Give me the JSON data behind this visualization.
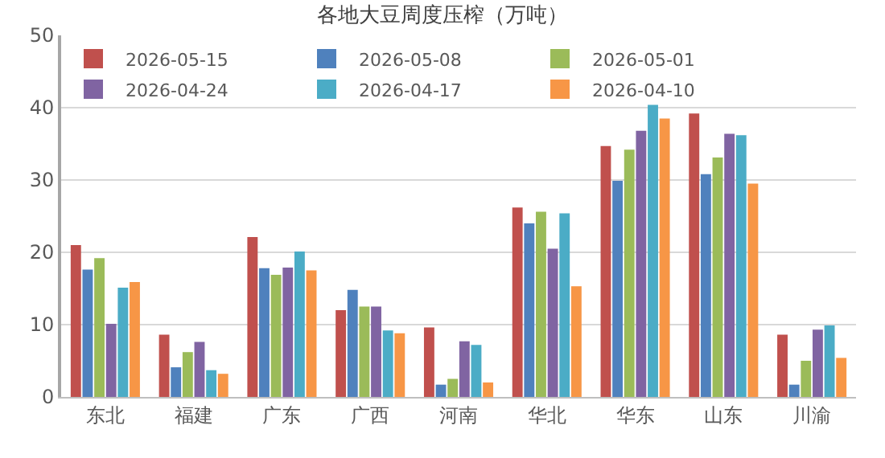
{
  "chart_data": {
    "type": "bar",
    "title": "各地大豆周度压榨（万吨）",
    "categories": [
      "东北",
      "福建",
      "广东",
      "广西",
      "河南",
      "华北",
      "华东",
      "山东",
      "川渝"
    ],
    "series": [
      {
        "name": "2026-05-15",
        "color": "#c0504d",
        "values": [
          21,
          8.6,
          22.1,
          12,
          9.6,
          26.2,
          34.7,
          39.2,
          8.6
        ]
      },
      {
        "name": "2026-05-08",
        "color": "#4f81bd",
        "values": [
          17.6,
          4.1,
          17.8,
          14.8,
          1.7,
          24,
          29.9,
          30.8,
          1.7
        ]
      },
      {
        "name": "2026-05-01",
        "color": "#9bbb59",
        "values": [
          19.2,
          6.2,
          16.9,
          12.5,
          2.5,
          25.6,
          34.2,
          33.1,
          5
        ]
      },
      {
        "name": "2026-04-24",
        "color": "#8064a2",
        "values": [
          10.1,
          7.6,
          17.9,
          12.5,
          7.7,
          20.5,
          36.8,
          36.4,
          9.3
        ]
      },
      {
        "name": "2026-04-17",
        "color": "#4bacc6",
        "values": [
          15.1,
          3.7,
          20.1,
          9.2,
          7.2,
          25.4,
          40.4,
          36.2,
          9.9
        ]
      },
      {
        "name": "2026-04-10",
        "color": "#f79646",
        "values": [
          15.9,
          3.2,
          17.5,
          8.8,
          2,
          15.3,
          38.5,
          29.5,
          5.4
        ]
      }
    ],
    "ylim": [
      0,
      50
    ],
    "yticks": [
      0,
      10,
      20,
      30,
      40,
      50
    ],
    "grid": "y",
    "legend": "top left"
  }
}
